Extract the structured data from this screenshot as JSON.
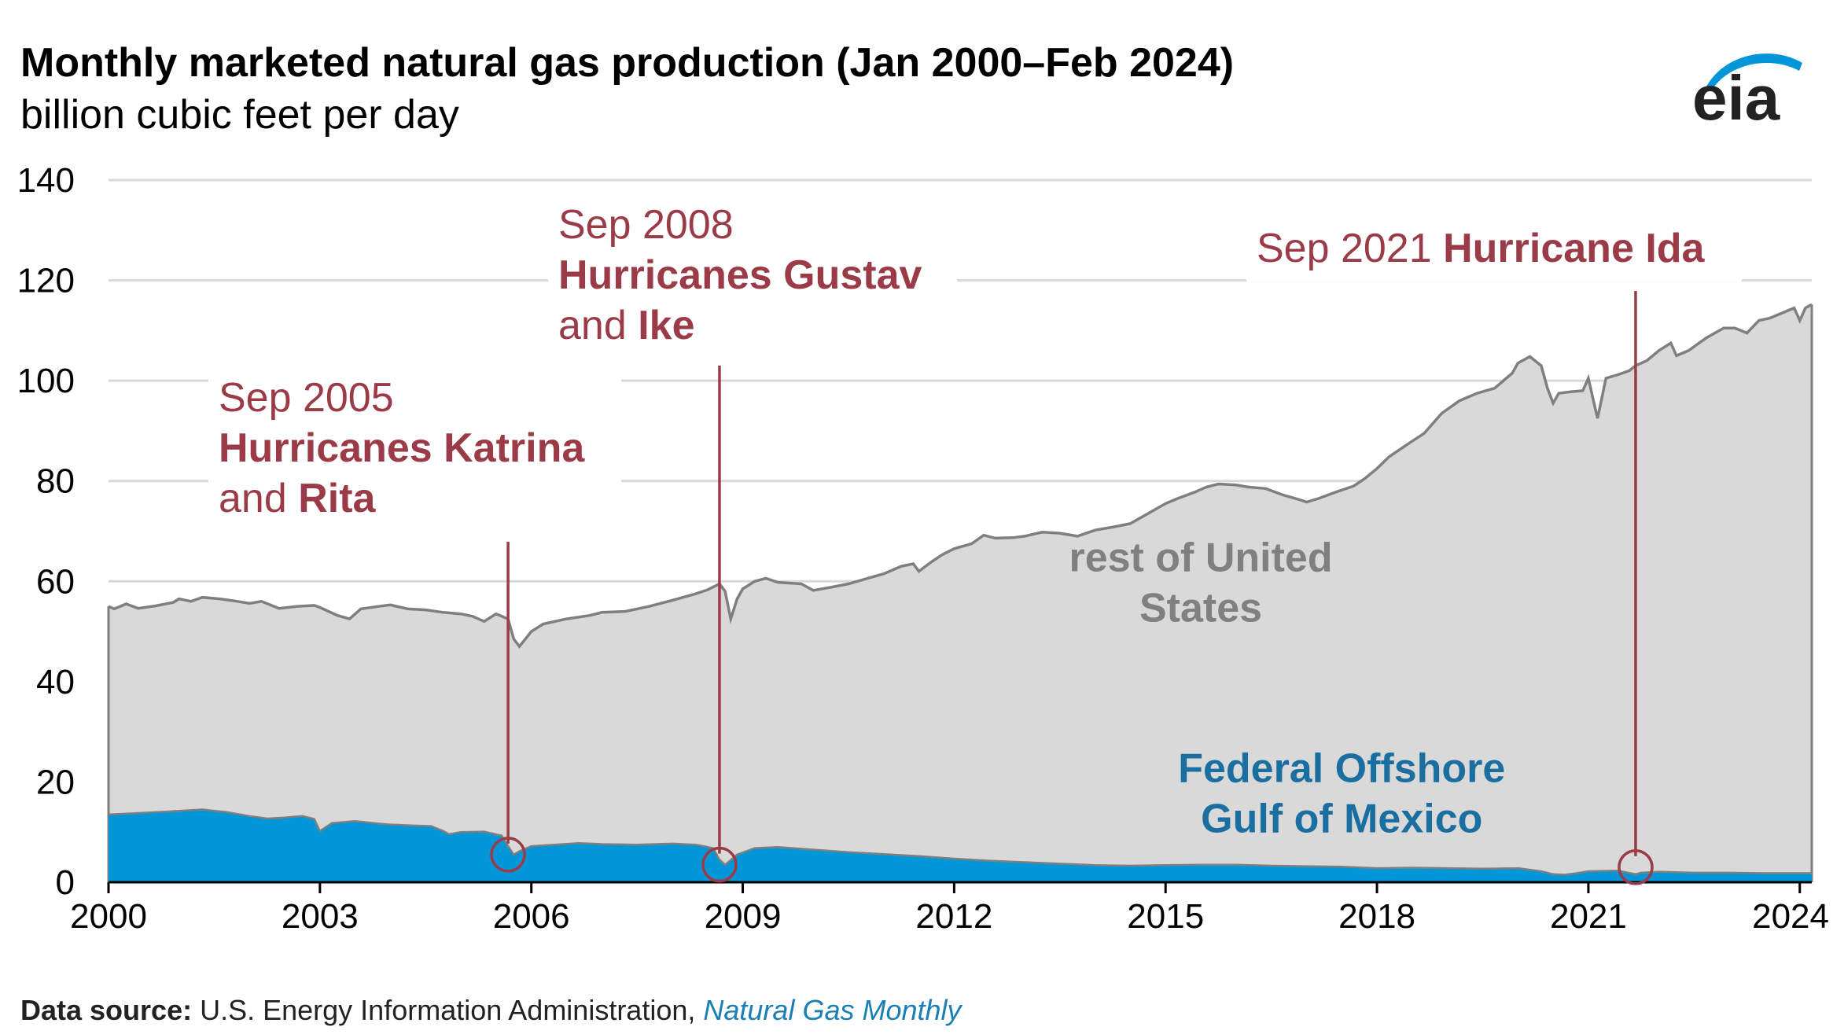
{
  "header": {
    "title": "Monthly marketed natural gas production (Jan 2000–Feb 2024)",
    "subtitle": "billion cubic feet per day",
    "logo_text": "eia"
  },
  "source": {
    "label": "Data source:",
    "text": "U.S. Energy Information Administration,",
    "publication": "Natural Gas Monthly"
  },
  "colors": {
    "total_fill": "#d9d9d9",
    "total_line": "#7f7f7f",
    "gulf_fill": "#0096d7",
    "annotation": "#9b3b47",
    "gulf_label": "#1a6fa0",
    "rest_label": "#808080",
    "grid": "#d9d9d9"
  },
  "chart_data": {
    "type": "area",
    "stacked": false,
    "grid": true,
    "ylim": [
      0,
      140
    ],
    "xlim": [
      2000,
      2024.17
    ],
    "y_ticks": [
      "0",
      "20",
      "40",
      "60",
      "80",
      "100",
      "120",
      "140"
    ],
    "x_ticks": [
      "2000",
      "2003",
      "2006",
      "2009",
      "2012",
      "2015",
      "2018",
      "2021",
      "2024"
    ],
    "series": [
      {
        "name": "rest of United States",
        "points": [
          [
            2000.0,
            55.0
          ],
          [
            2000.08,
            54.5
          ],
          [
            2000.25,
            55.5
          ],
          [
            2000.42,
            54.6
          ],
          [
            2000.67,
            55.1
          ],
          [
            2000.92,
            55.8
          ],
          [
            2001.0,
            56.5
          ],
          [
            2001.17,
            56.0
          ],
          [
            2001.33,
            56.8
          ],
          [
            2001.58,
            56.5
          ],
          [
            2001.83,
            56.0
          ],
          [
            2002.0,
            55.6
          ],
          [
            2002.17,
            56.0
          ],
          [
            2002.42,
            54.6
          ],
          [
            2002.67,
            55.0
          ],
          [
            2002.92,
            55.2
          ],
          [
            2003.0,
            54.8
          ],
          [
            2003.25,
            53.2
          ],
          [
            2003.42,
            52.5
          ],
          [
            2003.58,
            54.5
          ],
          [
            2003.83,
            55.0
          ],
          [
            2004.0,
            55.3
          ],
          [
            2004.25,
            54.5
          ],
          [
            2004.5,
            54.3
          ],
          [
            2004.75,
            53.8
          ],
          [
            2005.0,
            53.5
          ],
          [
            2005.17,
            53.0
          ],
          [
            2005.33,
            52.0
          ],
          [
            2005.5,
            53.5
          ],
          [
            2005.67,
            52.5
          ],
          [
            2005.75,
            48.5
          ],
          [
            2005.83,
            47.0
          ],
          [
            2006.0,
            50.0
          ],
          [
            2006.17,
            51.5
          ],
          [
            2006.5,
            52.5
          ],
          [
            2006.83,
            53.2
          ],
          [
            2007.0,
            53.8
          ],
          [
            2007.33,
            54.0
          ],
          [
            2007.67,
            55.0
          ],
          [
            2008.0,
            56.2
          ],
          [
            2008.33,
            57.5
          ],
          [
            2008.5,
            58.3
          ],
          [
            2008.67,
            59.5
          ],
          [
            2008.75,
            58.0
          ],
          [
            2008.83,
            52.5
          ],
          [
            2008.92,
            56.5
          ],
          [
            2009.0,
            58.5
          ],
          [
            2009.17,
            60.0
          ],
          [
            2009.33,
            60.6
          ],
          [
            2009.5,
            59.8
          ],
          [
            2009.83,
            59.5
          ],
          [
            2010.0,
            58.2
          ],
          [
            2010.25,
            58.8
          ],
          [
            2010.5,
            59.5
          ],
          [
            2010.75,
            60.5
          ],
          [
            2011.0,
            61.5
          ],
          [
            2011.25,
            63.0
          ],
          [
            2011.42,
            63.5
          ],
          [
            2011.5,
            62.0
          ],
          [
            2011.67,
            63.8
          ],
          [
            2011.83,
            65.3
          ],
          [
            2012.0,
            66.5
          ],
          [
            2012.25,
            67.5
          ],
          [
            2012.42,
            69.2
          ],
          [
            2012.58,
            68.6
          ],
          [
            2012.83,
            68.7
          ],
          [
            2013.0,
            69.0
          ],
          [
            2013.25,
            69.8
          ],
          [
            2013.5,
            69.6
          ],
          [
            2013.75,
            69.0
          ],
          [
            2014.0,
            70.2
          ],
          [
            2014.25,
            70.8
          ],
          [
            2014.5,
            71.5
          ],
          [
            2014.75,
            73.5
          ],
          [
            2015.0,
            75.5
          ],
          [
            2015.17,
            76.5
          ],
          [
            2015.42,
            77.8
          ],
          [
            2015.58,
            78.8
          ],
          [
            2015.75,
            79.4
          ],
          [
            2016.0,
            79.2
          ],
          [
            2016.17,
            78.8
          ],
          [
            2016.42,
            78.5
          ],
          [
            2016.67,
            77.2
          ],
          [
            2016.92,
            76.2
          ],
          [
            2017.0,
            75.8
          ],
          [
            2017.17,
            76.5
          ],
          [
            2017.42,
            77.8
          ],
          [
            2017.67,
            79.0
          ],
          [
            2017.83,
            80.5
          ],
          [
            2018.0,
            82.5
          ],
          [
            2018.17,
            84.8
          ],
          [
            2018.42,
            87.2
          ],
          [
            2018.67,
            89.5
          ],
          [
            2018.92,
            93.5
          ],
          [
            2019.17,
            96.0
          ],
          [
            2019.42,
            97.5
          ],
          [
            2019.67,
            98.5
          ],
          [
            2019.92,
            101.5
          ],
          [
            2020.0,
            103.5
          ],
          [
            2020.17,
            104.8
          ],
          [
            2020.33,
            103.0
          ],
          [
            2020.42,
            98.5
          ],
          [
            2020.5,
            95.5
          ],
          [
            2020.58,
            97.5
          ],
          [
            2020.75,
            97.8
          ],
          [
            2020.92,
            98.0
          ],
          [
            2021.0,
            100.5
          ],
          [
            2021.08,
            95.5
          ],
          [
            2021.13,
            92.5
          ],
          [
            2021.25,
            100.5
          ],
          [
            2021.42,
            101.2
          ],
          [
            2021.58,
            102.0
          ],
          [
            2021.67,
            103.0
          ],
          [
            2021.83,
            104.0
          ],
          [
            2022.0,
            106.0
          ],
          [
            2022.17,
            107.5
          ],
          [
            2022.25,
            105.0
          ],
          [
            2022.42,
            106.0
          ],
          [
            2022.67,
            108.5
          ],
          [
            2022.92,
            110.5
          ],
          [
            2023.08,
            110.5
          ],
          [
            2023.25,
            109.5
          ],
          [
            2023.42,
            112.0
          ],
          [
            2023.58,
            112.5
          ],
          [
            2023.75,
            113.5
          ],
          [
            2023.92,
            114.5
          ],
          [
            2024.0,
            112.0
          ],
          [
            2024.08,
            114.5
          ],
          [
            2024.17,
            115.2
          ]
        ]
      },
      {
        "name": "Federal Offshore Gulf of Mexico",
        "points": [
          [
            2000.0,
            13.5
          ],
          [
            2000.42,
            13.8
          ],
          [
            2000.83,
            14.1
          ],
          [
            2001.33,
            14.5
          ],
          [
            2001.67,
            14.0
          ],
          [
            2002.0,
            13.2
          ],
          [
            2002.25,
            12.7
          ],
          [
            2002.5,
            12.9
          ],
          [
            2002.75,
            13.2
          ],
          [
            2002.92,
            12.6
          ],
          [
            2003.0,
            10.2
          ],
          [
            2003.17,
            11.8
          ],
          [
            2003.5,
            12.2
          ],
          [
            2003.83,
            11.7
          ],
          [
            2004.0,
            11.5
          ],
          [
            2004.33,
            11.3
          ],
          [
            2004.58,
            11.2
          ],
          [
            2004.75,
            10.2
          ],
          [
            2004.83,
            9.6
          ],
          [
            2005.0,
            10.0
          ],
          [
            2005.33,
            10.1
          ],
          [
            2005.58,
            9.3
          ],
          [
            2005.67,
            7.2
          ],
          [
            2005.75,
            5.5
          ],
          [
            2005.83,
            6.2
          ],
          [
            2006.0,
            7.2
          ],
          [
            2006.33,
            7.5
          ],
          [
            2006.67,
            7.8
          ],
          [
            2007.0,
            7.6
          ],
          [
            2007.5,
            7.5
          ],
          [
            2008.0,
            7.7
          ],
          [
            2008.33,
            7.5
          ],
          [
            2008.58,
            6.8
          ],
          [
            2008.67,
            4.5
          ],
          [
            2008.75,
            3.5
          ],
          [
            2008.92,
            5.5
          ],
          [
            2009.17,
            6.8
          ],
          [
            2009.5,
            7.0
          ],
          [
            2010.0,
            6.5
          ],
          [
            2010.5,
            6.0
          ],
          [
            2011.0,
            5.6
          ],
          [
            2011.5,
            5.2
          ],
          [
            2012.0,
            4.7
          ],
          [
            2012.5,
            4.3
          ],
          [
            2013.0,
            4.0
          ],
          [
            2013.5,
            3.7
          ],
          [
            2014.0,
            3.4
          ],
          [
            2014.5,
            3.3
          ],
          [
            2015.0,
            3.4
          ],
          [
            2015.5,
            3.5
          ],
          [
            2016.0,
            3.5
          ],
          [
            2016.5,
            3.3
          ],
          [
            2017.0,
            3.2
          ],
          [
            2017.5,
            3.1
          ],
          [
            2018.0,
            2.8
          ],
          [
            2018.5,
            2.9
          ],
          [
            2019.0,
            2.8
          ],
          [
            2019.5,
            2.7
          ],
          [
            2020.0,
            2.8
          ],
          [
            2020.33,
            2.2
          ],
          [
            2020.5,
            1.6
          ],
          [
            2020.67,
            1.5
          ],
          [
            2020.83,
            1.8
          ],
          [
            2021.0,
            2.2
          ],
          [
            2021.42,
            2.3
          ],
          [
            2021.67,
            1.6
          ],
          [
            2021.75,
            1.9
          ],
          [
            2022.0,
            2.1
          ],
          [
            2022.5,
            1.9
          ],
          [
            2023.0,
            1.9
          ],
          [
            2023.5,
            1.8
          ],
          [
            2024.0,
            1.8
          ],
          [
            2024.17,
            1.8
          ]
        ]
      }
    ],
    "series_labels": [
      {
        "lines": [
          "rest of United",
          "States"
        ]
      },
      {
        "lines": [
          "Federal Offshore",
          "Gulf of Mexico"
        ]
      }
    ],
    "annotations": [
      {
        "date": "Sep 2005",
        "name_prefix": "Hurricanes Katrina",
        "name_join": "and",
        "name_suffix": "Rita",
        "x": 2005.67,
        "y": 5.5
      },
      {
        "date": "Sep 2008",
        "name_prefix": "Hurricanes Gustav",
        "name_join": "and",
        "name_suffix": "Ike",
        "x": 2008.67,
        "y": 3.5
      },
      {
        "date": "Sep 2021",
        "name_prefix": "Hurricane Ida",
        "x": 2021.67,
        "y": 3.0
      }
    ]
  }
}
